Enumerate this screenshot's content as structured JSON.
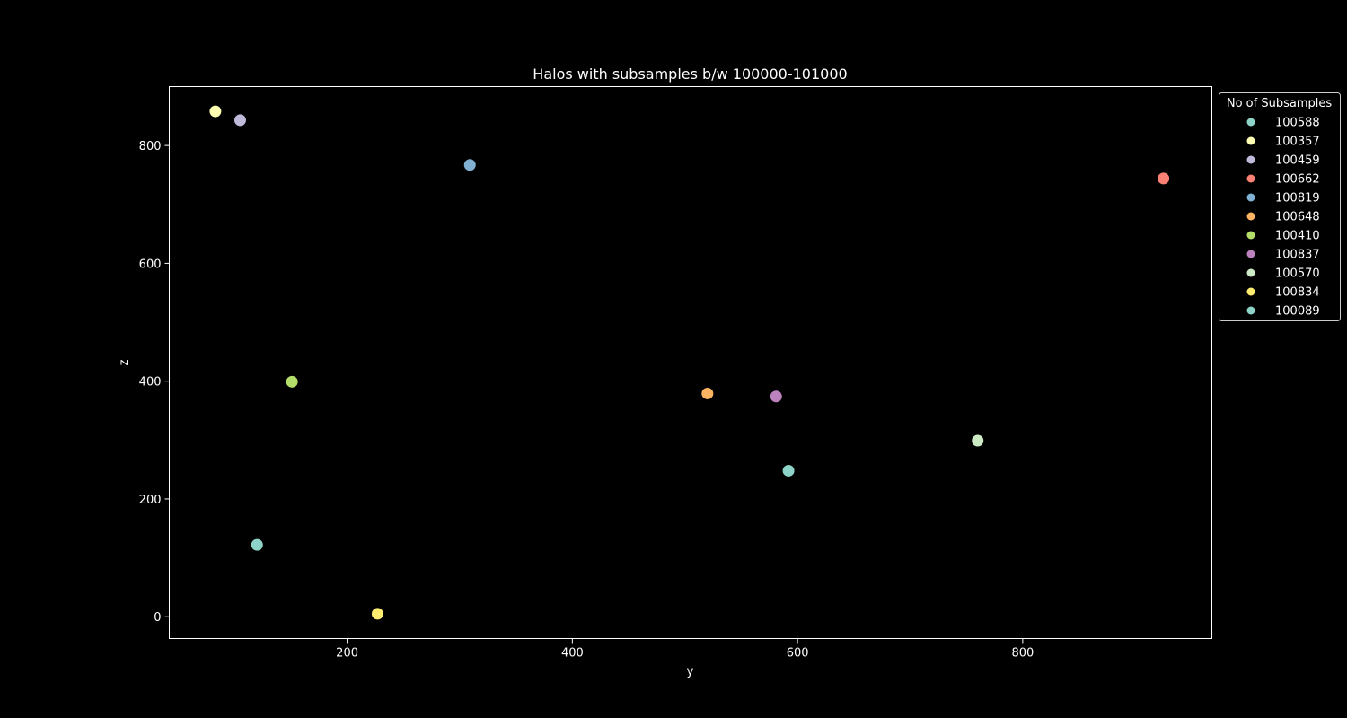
{
  "chart_data": {
    "type": "scatter",
    "title": "Halos with subsamples b/w 100000-101000",
    "xlabel": "y",
    "ylabel": "z",
    "xlim": [
      42,
      968
    ],
    "ylim": [
      -37,
      900
    ],
    "x_ticks": [
      200,
      400,
      600,
      800
    ],
    "y_ticks": [
      0,
      200,
      400,
      600,
      800
    ],
    "grid": false,
    "legend": {
      "title": "No of Subsamples",
      "placement": "outside-right"
    },
    "series": [
      {
        "name": "100588",
        "color": "#8dd3c7",
        "x": 592,
        "y": 248
      },
      {
        "name": "100357",
        "color": "#ffffb3",
        "x": 83,
        "y": 858
      },
      {
        "name": "100459",
        "color": "#bebada",
        "x": 105,
        "y": 843
      },
      {
        "name": "100662",
        "color": "#fa8174",
        "x": 925,
        "y": 744
      },
      {
        "name": "100819",
        "color": "#81b1d2",
        "x": 309,
        "y": 767
      },
      {
        "name": "100648",
        "color": "#fdb462",
        "x": 520,
        "y": 379
      },
      {
        "name": "100410",
        "color": "#b3de69",
        "x": 151,
        "y": 399
      },
      {
        "name": "100837",
        "color": "#bc82bd",
        "x": 581,
        "y": 374
      },
      {
        "name": "100570",
        "color": "#ccebc4",
        "x": 760,
        "y": 299
      },
      {
        "name": "100834",
        "color": "#ffed6f",
        "x": 227,
        "y": 5
      },
      {
        "name": "100089",
        "color": "#8dd3c7",
        "x": 120,
        "y": 122
      }
    ]
  }
}
